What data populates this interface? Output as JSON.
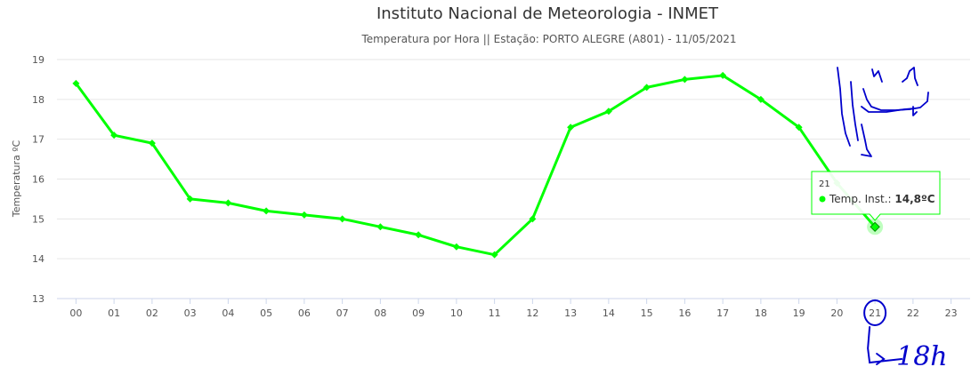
{
  "chart_data": {
    "type": "line",
    "title": "Instituto Nacional de Meteorologia - INMET",
    "subtitle": "Temperatura por Hora || Estação: PORTO ALEGRE (A801) - 11/05/2021",
    "ylabel": "Temperatura ºC",
    "xlabel": "",
    "ylim": [
      13,
      19
    ],
    "yticks": [
      "13",
      "14",
      "15",
      "16",
      "17",
      "18",
      "19"
    ],
    "categories": [
      "00",
      "01",
      "02",
      "03",
      "04",
      "05",
      "06",
      "07",
      "08",
      "09",
      "10",
      "11",
      "12",
      "13",
      "14",
      "15",
      "16",
      "17",
      "18",
      "19",
      "20",
      "21",
      "22",
      "23"
    ],
    "series": [
      {
        "name": "Temp. Inst.",
        "color": "#00ff00",
        "values": [
          18.4,
          17.1,
          16.9,
          15.5,
          15.4,
          15.2,
          15.1,
          15.0,
          14.8,
          14.6,
          14.3,
          14.1,
          15.0,
          17.3,
          17.7,
          18.3,
          18.5,
          18.6,
          18.0,
          17.3,
          15.9,
          14.8,
          null,
          null
        ]
      }
    ],
    "grid": true,
    "legend": "none",
    "tooltip": {
      "category": "21",
      "label": "Temp. Inst.: ",
      "value": "14,8ºC"
    }
  },
  "annotation": {
    "handwritten_text": "18h",
    "color": "#0000cc"
  }
}
